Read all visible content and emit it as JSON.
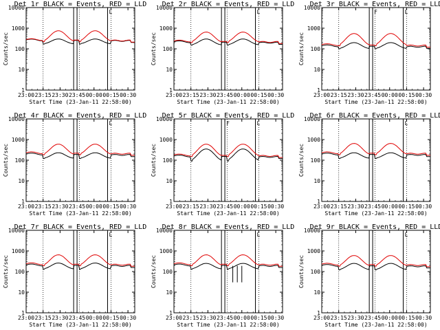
{
  "figure": {
    "background": "#ffffff",
    "axis_color": "#000000",
    "events_color": "#000000",
    "lld_color": "#e00000"
  },
  "chart_data": [
    {
      "type": "line",
      "title": "Det 1r BLACK = Events, RED = LLD",
      "xlabel": "",
      "ylabel": "Counts/sec",
      "y_scale": "log",
      "ylim": [
        1,
        10000
      ],
      "yticks": [
        "1",
        "10",
        "100",
        "1000",
        "10000"
      ],
      "x_unit": "minutes from 23:00",
      "xlim": [
        0,
        96
      ],
      "xticks": [
        "23:00",
        "23:15",
        "23:30",
        "23:45",
        "00:00",
        "00:15",
        "00:30"
      ],
      "grid_lines_x": [
        15,
        47,
        75
      ],
      "markers": [
        {
          "x": 42,
          "label": ""
        },
        {
          "x": 45,
          "label": ""
        },
        {
          "x": 72,
          "label": "L"
        }
      ],
      "series": [
        {
          "name": "Events",
          "red": false,
          "peak": 300,
          "base": 270,
          "dip": 170,
          "gaps": []
        },
        {
          "name": "LLD",
          "red": true,
          "peak": 750,
          "base": 280,
          "dip": 220
        }
      ]
    },
    {
      "type": "line",
      "title": "Det 2r BLACK = Events, RED = LLD",
      "xlabel": "",
      "ylabel": "Counts/sec",
      "y_scale": "log",
      "ylim": [
        1,
        10000
      ],
      "yticks": [
        "1",
        "10",
        "100",
        "1000",
        "10000"
      ],
      "x_unit": "minutes from 23:00",
      "xlim": [
        0,
        96
      ],
      "xticks": [
        "23:00",
        "23:15",
        "23:30",
        "23:45",
        "00:00",
        "00:15",
        "00:30"
      ],
      "grid_lines_x": [
        15,
        47,
        75
      ],
      "markers": [
        {
          "x": 42,
          "label": ""
        },
        {
          "x": 45,
          "label": ""
        },
        {
          "x": 72,
          "label": "L"
        }
      ],
      "series": [
        {
          "name": "Events",
          "red": false,
          "peak": 300,
          "base": 220,
          "dip": 150,
          "gaps": []
        },
        {
          "name": "LLD",
          "red": true,
          "peak": 650,
          "base": 240,
          "dip": 200
        }
      ]
    },
    {
      "type": "line",
      "title": "Det 3r BLACK = Events, RED = LLD",
      "xlabel": "",
      "ylabel": "Counts/sec",
      "y_scale": "log",
      "ylim": [
        1,
        10000
      ],
      "yticks": [
        "1",
        "10",
        "100",
        "1000",
        "10000"
      ],
      "x_unit": "minutes from 23:00",
      "xlim": [
        0,
        96
      ],
      "xticks": [
        "23:00",
        "23:15",
        "23:30",
        "23:45",
        "00:00",
        "00:15",
        "00:30"
      ],
      "grid_lines_x": [
        15,
        47,
        75
      ],
      "markers": [
        {
          "x": 42,
          "label": ""
        },
        {
          "x": 45,
          "label": "F"
        },
        {
          "x": 72,
          "label": "L"
        }
      ],
      "series": [
        {
          "name": "Events",
          "red": false,
          "peak": 200,
          "base": 140,
          "dip": 100,
          "gaps": []
        },
        {
          "name": "LLD",
          "red": true,
          "peak": 550,
          "base": 160,
          "dip": 140
        }
      ]
    },
    {
      "type": "line",
      "title": "Det 4r BLACK = Events, RED = LLD",
      "xlabel": "",
      "ylabel": "Counts/sec",
      "y_scale": "log",
      "ylim": [
        1,
        10000
      ],
      "yticks": [
        "1",
        "10",
        "100",
        "1000",
        "10000"
      ],
      "x_unit": "minutes from 23:00",
      "xlim": [
        0,
        96
      ],
      "xticks": [
        "23:00",
        "23:15",
        "23:30",
        "23:45",
        "00:00",
        "00:15",
        "00:30"
      ],
      "grid_lines_x": [
        15,
        47,
        75
      ],
      "markers": [
        {
          "x": 42,
          "label": ""
        },
        {
          "x": 45,
          "label": ""
        },
        {
          "x": 72,
          "label": "L"
        }
      ],
      "series": [
        {
          "name": "Events",
          "red": false,
          "peak": 230,
          "base": 200,
          "dip": 120,
          "gaps": []
        },
        {
          "name": "LLD",
          "red": true,
          "peak": 600,
          "base": 230,
          "dip": 180
        }
      ]
    },
    {
      "type": "line",
      "title": "Det 5r BLACK = Events, RED = LLD",
      "xlabel": "",
      "ylabel": "Counts/sec",
      "y_scale": "log",
      "ylim": [
        1,
        10000
      ],
      "yticks": [
        "1",
        "10",
        "100",
        "1000",
        "10000"
      ],
      "x_unit": "minutes from 23:00",
      "xlim": [
        0,
        96
      ],
      "xticks": [
        "23:00",
        "23:15",
        "23:30",
        "23:45",
        "00:00",
        "00:15",
        "00:30"
      ],
      "grid_lines_x": [
        15,
        47,
        75
      ],
      "markers": [
        {
          "x": 42,
          "label": ""
        },
        {
          "x": 45,
          "label": "F"
        },
        {
          "x": 72,
          "label": "L"
        }
      ],
      "series": [
        {
          "name": "Events",
          "red": false,
          "peak": 350,
          "base": 160,
          "dip": 90,
          "gaps": []
        },
        {
          "name": "LLD",
          "red": true,
          "peak": 600,
          "base": 180,
          "dip": 150
        }
      ]
    },
    {
      "type": "line",
      "title": "Det 6r BLACK = Events, RED = LLD",
      "xlabel": "",
      "ylabel": "Counts/sec",
      "y_scale": "log",
      "ylim": [
        1,
        10000
      ],
      "yticks": [
        "1",
        "10",
        "100",
        "1000",
        "10000"
      ],
      "x_unit": "minutes from 23:00",
      "xlim": [
        0,
        96
      ],
      "xticks": [
        "23:00",
        "23:15",
        "23:30",
        "23:45",
        "00:00",
        "00:15",
        "00:30"
      ],
      "grid_lines_x": [
        15,
        47,
        75
      ],
      "markers": [
        {
          "x": 42,
          "label": ""
        },
        {
          "x": 45,
          "label": ""
        },
        {
          "x": 72,
          "label": "L"
        }
      ],
      "series": [
        {
          "name": "Events",
          "red": false,
          "peak": 230,
          "base": 200,
          "dip": 120,
          "gaps": []
        },
        {
          "name": "LLD",
          "red": true,
          "peak": 650,
          "base": 230,
          "dip": 180
        }
      ]
    },
    {
      "type": "line",
      "title": "Det 7r BLACK = Events, RED = LLD",
      "xlabel": "",
      "ylabel": "Counts/sec",
      "y_scale": "log",
      "ylim": [
        1,
        10000
      ],
      "yticks": [
        "1",
        "10",
        "100",
        "1000",
        "10000"
      ],
      "x_unit": "minutes from 23:00",
      "xlim": [
        0,
        96
      ],
      "xticks": [
        "23:00",
        "23:15",
        "23:30",
        "23:45",
        "00:00",
        "00:15",
        "00:30"
      ],
      "grid_lines_x": [
        15,
        47,
        75
      ],
      "markers": [
        {
          "x": 42,
          "label": ""
        },
        {
          "x": 45,
          "label": ""
        },
        {
          "x": 72,
          "label": "L"
        }
      ],
      "series": [
        {
          "name": "Events",
          "red": false,
          "peak": 260,
          "base": 210,
          "dip": 130,
          "gaps": []
        },
        {
          "name": "LLD",
          "red": true,
          "peak": 650,
          "base": 240,
          "dip": 190
        }
      ]
    },
    {
      "type": "line",
      "title": "Det 8r BLACK = Events, RED = LLD",
      "xlabel": "",
      "ylabel": "Counts/sec",
      "y_scale": "log",
      "ylim": [
        1,
        10000
      ],
      "yticks": [
        "1",
        "10",
        "100",
        "1000",
        "10000"
      ],
      "x_unit": "minutes from 23:00",
      "xlim": [
        0,
        96
      ],
      "xticks": [
        "23:00",
        "23:15",
        "23:30",
        "23:45",
        "00:00",
        "00:15",
        "00:30"
      ],
      "grid_lines_x": [
        15,
        47,
        75
      ],
      "markers": [
        {
          "x": 42,
          "label": ""
        },
        {
          "x": 45,
          "label": ""
        },
        {
          "x": 72,
          "label": "L"
        }
      ],
      "series": [
        {
          "name": "Events",
          "red": false,
          "peak": 250,
          "base": 210,
          "dip": 130,
          "gaps": [
            52,
            56,
            60
          ]
        },
        {
          "name": "LLD",
          "red": true,
          "peak": 650,
          "base": 240,
          "dip": 190
        }
      ]
    },
    {
      "type": "line",
      "title": "Det 9r BLACK = Events, RED = LLD",
      "xlabel": "",
      "ylabel": "Counts/sec",
      "y_scale": "log",
      "ylim": [
        1,
        10000
      ],
      "yticks": [
        "1",
        "10",
        "100",
        "1000",
        "10000"
      ],
      "x_unit": "minutes from 23:00",
      "xlim": [
        0,
        96
      ],
      "xticks": [
        "23:00",
        "23:15",
        "23:30",
        "23:45",
        "00:00",
        "00:15",
        "00:30"
      ],
      "grid_lines_x": [
        15,
        47,
        75
      ],
      "markers": [
        {
          "x": 42,
          "label": ""
        },
        {
          "x": 45,
          "label": ""
        },
        {
          "x": 72,
          "label": "L"
        }
      ],
      "series": [
        {
          "name": "Events",
          "red": false,
          "peak": 250,
          "base": 200,
          "dip": 120,
          "gaps": []
        },
        {
          "name": "LLD",
          "red": true,
          "peak": 600,
          "base": 230,
          "dip": 180
        }
      ]
    }
  ],
  "shared_xlabel": "Start Time (23-Jan-11 22:58:00)"
}
